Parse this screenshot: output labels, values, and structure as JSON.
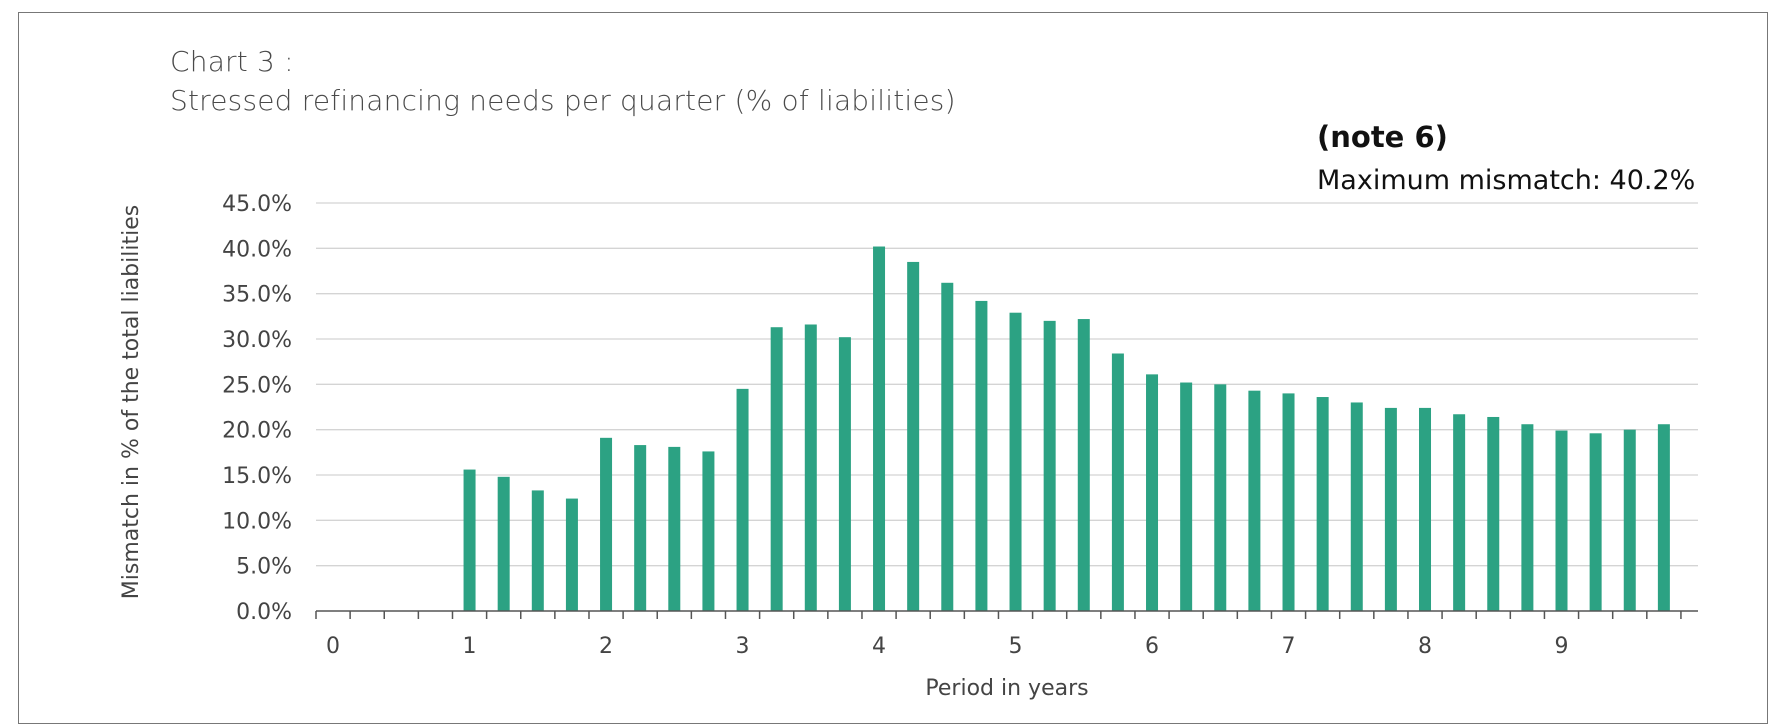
{
  "chart_data": {
    "type": "bar",
    "title_line1": "Chart 3 :",
    "title_line2": "Stressed refinancing needs per quarter  (% of liabilities)",
    "note": "(note 6)",
    "annotation": "Maximum mismatch: 40.2%",
    "xlabel": "Period in years",
    "ylabel": "Mismatch in % of the total liabilities",
    "ylim": [
      0,
      45
    ],
    "yticks": [
      0,
      5,
      10,
      15,
      20,
      25,
      30,
      35,
      40,
      45
    ],
    "ytick_labels": [
      "0.0%",
      "5.0%",
      "10.0%",
      "15.0%",
      "20.0%",
      "25.0%",
      "30.0%",
      "35.0%",
      "40.0%",
      "45.0%"
    ],
    "xlim": [
      -0.125,
      10
    ],
    "xticks": [
      0,
      1,
      2,
      3,
      4,
      5,
      6,
      7,
      8,
      9
    ],
    "xtick_labels": [
      "0",
      "1",
      "2",
      "3",
      "4",
      "5",
      "6",
      "7",
      "8",
      "9"
    ],
    "grid": true,
    "bar_color": "#2ca283",
    "x": [
      1,
      1.25,
      1.5,
      1.75,
      2,
      2.25,
      2.5,
      2.75,
      3,
      3.25,
      3.5,
      3.75,
      4,
      4.25,
      4.5,
      4.75,
      5,
      5.25,
      5.5,
      5.75,
      6,
      6.25,
      6.5,
      6.75,
      7,
      7.25,
      7.5,
      7.75,
      8,
      8.25,
      8.5,
      8.75,
      9,
      9.25,
      9.5,
      9.75
    ],
    "values": [
      15.6,
      14.8,
      13.3,
      12.4,
      19.1,
      18.3,
      18.1,
      17.6,
      24.5,
      31.3,
      31.6,
      30.2,
      40.2,
      38.5,
      36.2,
      34.2,
      32.9,
      32.0,
      32.2,
      28.4,
      26.1,
      25.2,
      25.0,
      24.3,
      24.0,
      23.6,
      23.0,
      22.4,
      22.4,
      21.7,
      21.4,
      20.6,
      19.9,
      19.6,
      20.0,
      20.6
    ]
  }
}
